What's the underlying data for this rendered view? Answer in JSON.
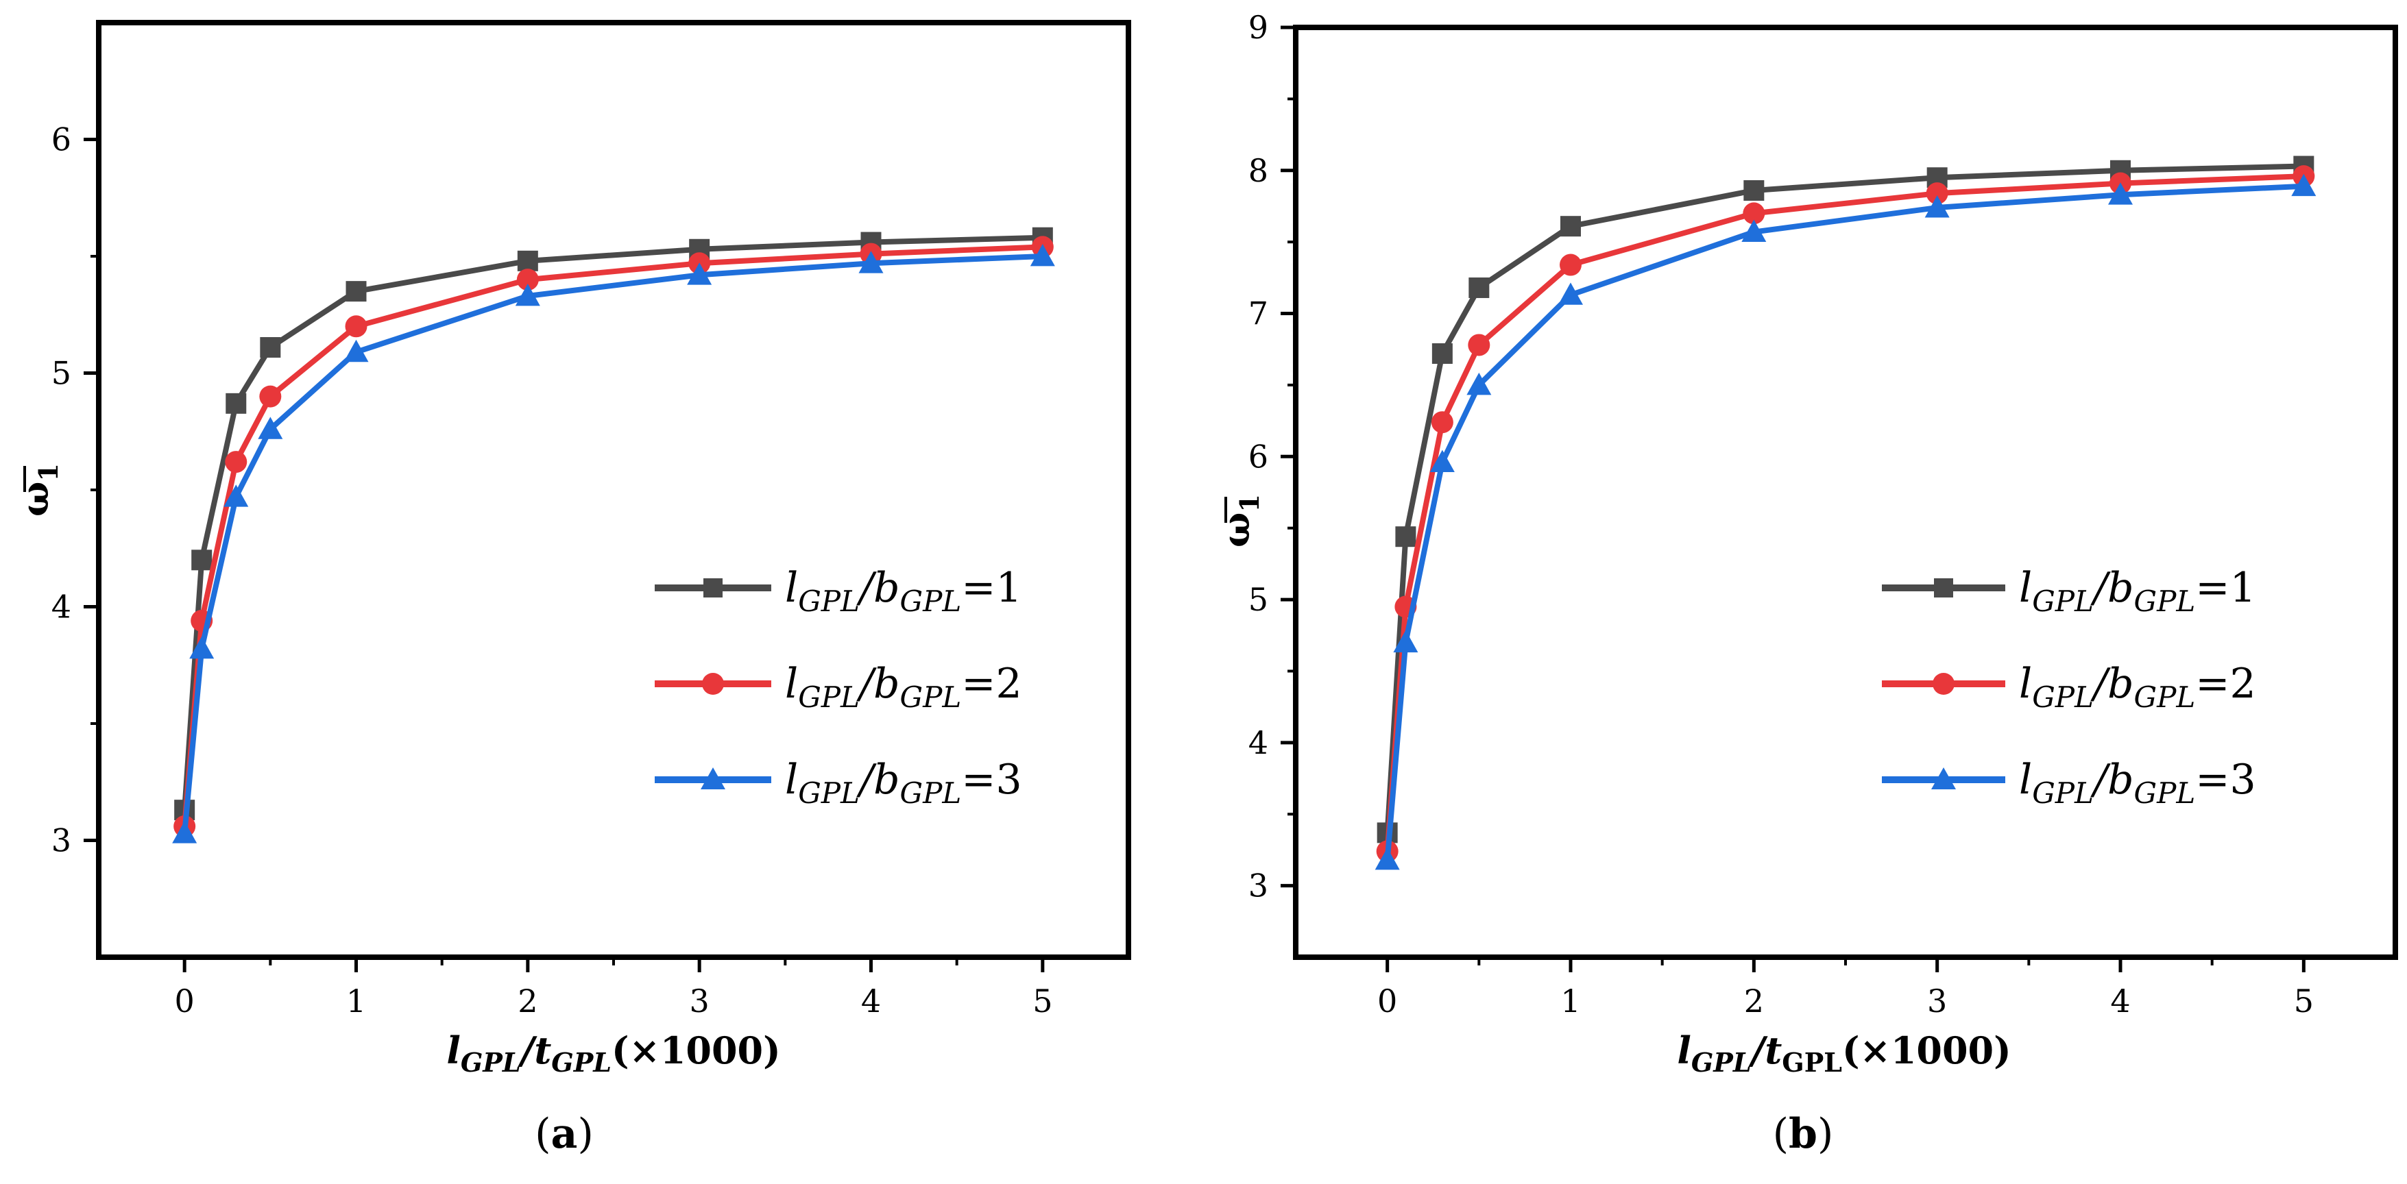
{
  "colors": {
    "series": [
      "#4a4a4a",
      "#e8373a",
      "#1f6fdb"
    ],
    "axis": "#000000"
  },
  "markers": [
    "square",
    "circle",
    "triangle"
  ],
  "legend": {
    "entries": [
      {
        "l": "l",
        "l_sub": "GPL",
        "slash": "/",
        "b": "b",
        "b_sub": "GPL",
        "eq": "=1"
      },
      {
        "l": "l",
        "l_sub": "GPL",
        "slash": "/",
        "b": "b",
        "b_sub": "GPL",
        "eq": "=2"
      },
      {
        "l": "l",
        "l_sub": "GPL",
        "slash": "/",
        "b": "b",
        "b_sub": "GPL",
        "eq": "=3"
      }
    ]
  },
  "chart_data": [
    {
      "type": "line",
      "panel_label": {
        "open": "(",
        "letter": "a",
        "close": ")"
      },
      "xlabel": {
        "l": "l",
        "l_sub": "GPL",
        "slash": "/",
        "t": "t",
        "t_sub": "GPL",
        "suffix": "(×1000)"
      },
      "ylabel": {
        "symbol": "ω",
        "sub": "1"
      },
      "xlim": [
        -0.5,
        5.5
      ],
      "ylim": [
        2.5,
        6.5
      ],
      "xticks": [
        0,
        1,
        2,
        3,
        4,
        5
      ],
      "yticks": [
        3,
        4,
        5,
        6
      ],
      "legend_position": "center-right",
      "x": [
        0,
        0.1,
        0.3,
        0.5,
        1,
        2,
        3,
        4,
        5
      ],
      "series": [
        {
          "name": "lGPL/bGPL=1",
          "values": [
            3.13,
            4.2,
            4.87,
            5.11,
            5.35,
            5.48,
            5.53,
            5.56,
            5.58
          ]
        },
        {
          "name": "lGPL/bGPL=2",
          "values": [
            3.06,
            3.94,
            4.62,
            4.9,
            5.2,
            5.4,
            5.47,
            5.51,
            5.54
          ]
        },
        {
          "name": "lGPL/bGPL=3",
          "values": [
            3.03,
            3.82,
            4.47,
            4.76,
            5.09,
            5.33,
            5.42,
            5.47,
            5.5
          ]
        }
      ]
    },
    {
      "type": "line",
      "panel_label": {
        "open": "(",
        "letter": "b",
        "close": ")"
      },
      "xlabel": {
        "l": "l",
        "l_sub": "GPL",
        "slash": "/",
        "t": "t",
        "t_sub": "GPL",
        "suffix": "(×1000)"
      },
      "ylabel": {
        "symbol": "ω",
        "sub": "1"
      },
      "xlim": [
        -0.5,
        5.5
      ],
      "ylim": [
        2.5,
        9
      ],
      "xticks": [
        0,
        1,
        2,
        3,
        4,
        5
      ],
      "yticks": [
        3,
        4,
        5,
        6,
        7,
        8,
        9
      ],
      "legend_position": "center-right",
      "x": [
        0,
        0.1,
        0.3,
        0.5,
        1,
        2,
        3,
        4,
        5
      ],
      "series": [
        {
          "name": "lGPL/bGPL=1",
          "values": [
            3.37,
            5.44,
            6.72,
            7.18,
            7.61,
            7.86,
            7.95,
            8.0,
            8.03
          ]
        },
        {
          "name": "lGPL/bGPL=2",
          "values": [
            3.24,
            4.95,
            6.24,
            6.78,
            7.34,
            7.7,
            7.84,
            7.91,
            7.96
          ]
        },
        {
          "name": "lGPL/bGPL=3",
          "values": [
            3.18,
            4.7,
            5.96,
            6.5,
            7.13,
            7.57,
            7.74,
            7.83,
            7.89
          ]
        }
      ]
    }
  ]
}
